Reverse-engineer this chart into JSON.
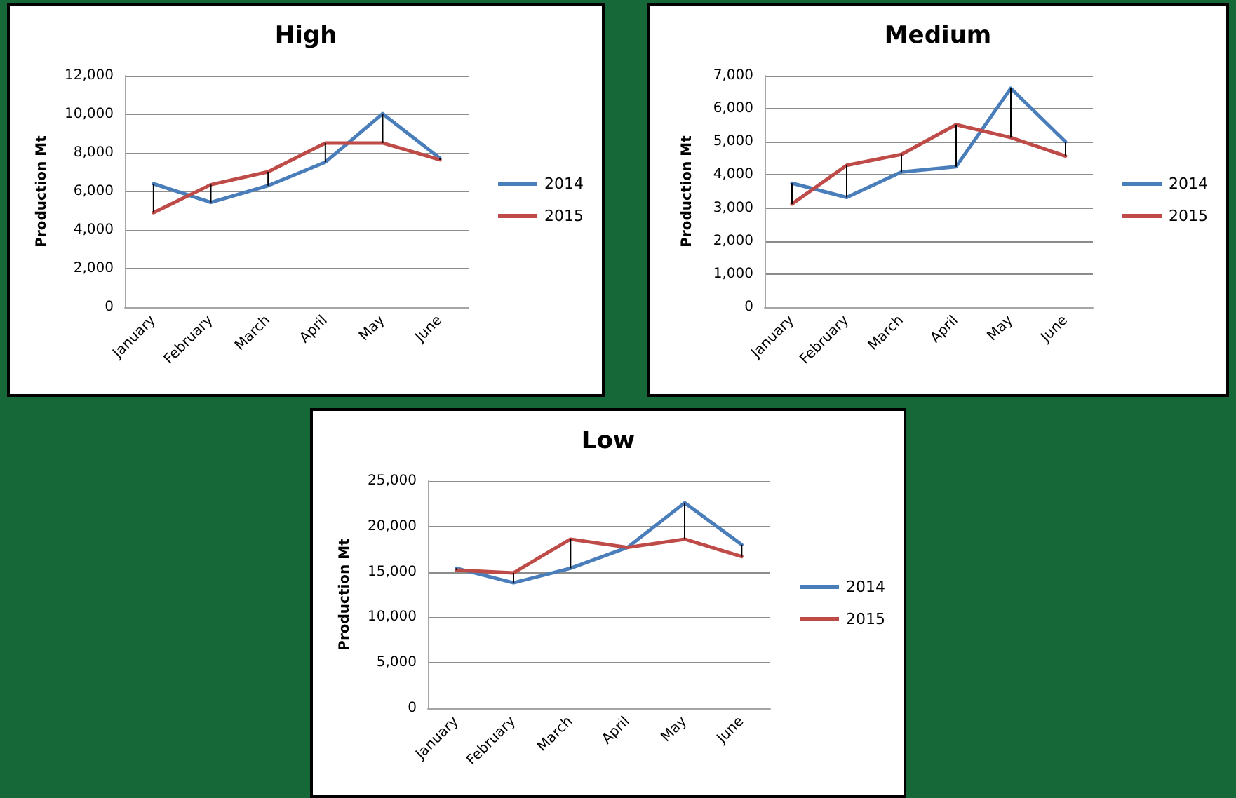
{
  "chart_data": [
    {
      "type": "line",
      "title": "High",
      "ylabel": "Production Mt",
      "categories": [
        "January",
        "February",
        "March",
        "April",
        "May",
        "June"
      ],
      "series": [
        {
          "name": "2014",
          "color": "#4a7ebb",
          "values": [
            6400,
            5430,
            6300,
            7520,
            10030,
            7720
          ]
        },
        {
          "name": "2015",
          "color": "#be4b48",
          "values": [
            4900,
            6350,
            7020,
            8510,
            8510,
            7640
          ]
        }
      ],
      "ylim": [
        0,
        12000
      ],
      "yticks": [
        {
          "value": 0,
          "label": "0"
        },
        {
          "value": 2000,
          "label": "2,000"
        },
        {
          "value": 4000,
          "label": "4,000"
        },
        {
          "value": 6000,
          "label": "6,000"
        },
        {
          "value": 8000,
          "label": "8,000"
        },
        {
          "value": 10000,
          "label": "10,000"
        },
        {
          "value": 12000,
          "label": "12,000"
        }
      ],
      "grid": "y",
      "legend": "right",
      "marker": "none"
    },
    {
      "type": "line",
      "title": "Medium",
      "ylabel": "Production Mt",
      "categories": [
        "January",
        "February",
        "March",
        "April",
        "May",
        "June"
      ],
      "series": [
        {
          "name": "2014",
          "color": "#4a7ebb",
          "values": [
            3750,
            3320,
            4090,
            4250,
            6620,
            5000
          ]
        },
        {
          "name": "2015",
          "color": "#be4b48",
          "values": [
            3120,
            4290,
            4620,
            5520,
            5130,
            4570
          ]
        }
      ],
      "ylim": [
        0,
        7000
      ],
      "yticks": [
        {
          "value": 0,
          "label": "0"
        },
        {
          "value": 1000,
          "label": "1,000"
        },
        {
          "value": 2000,
          "label": "2,000"
        },
        {
          "value": 3000,
          "label": "3,000"
        },
        {
          "value": 4000,
          "label": "4,000"
        },
        {
          "value": 5000,
          "label": "5,000"
        },
        {
          "value": 6000,
          "label": "6,000"
        },
        {
          "value": 7000,
          "label": "7,000"
        }
      ],
      "grid": "y",
      "legend": "right",
      "marker": "none"
    },
    {
      "type": "line",
      "title": "Low",
      "ylabel": "Production Mt",
      "categories": [
        "January",
        "February",
        "March",
        "April",
        "May",
        "June"
      ],
      "series": [
        {
          "name": "2014",
          "color": "#4a7ebb",
          "values": [
            15400,
            13800,
            15400,
            17700,
            22600,
            18000
          ]
        },
        {
          "name": "2015",
          "color": "#be4b48",
          "values": [
            15200,
            14900,
            18600,
            17700,
            18600,
            16700
          ]
        }
      ],
      "ylim": [
        0,
        25000
      ],
      "yticks": [
        {
          "value": 0,
          "label": "0"
        },
        {
          "value": 5000,
          "label": "5,000"
        },
        {
          "value": 10000,
          "label": "10,000"
        },
        {
          "value": 15000,
          "label": "15,000"
        },
        {
          "value": 20000,
          "label": "20,000"
        },
        {
          "value": 25000,
          "label": "25,000"
        }
      ],
      "grid": "y",
      "legend": "right",
      "marker": "none"
    }
  ]
}
